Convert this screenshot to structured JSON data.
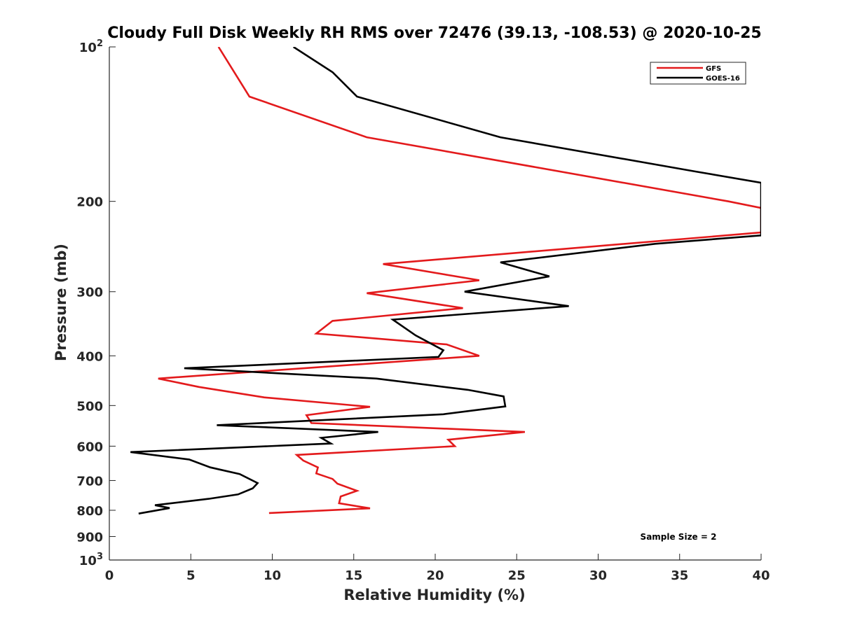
{
  "chart_data": {
    "type": "line",
    "title": "Cloudy Full Disk Weekly RH RMS over 72476 (39.13, -108.53) @ 2020-10-25",
    "xlabel": "Relative Humidity (%)",
    "ylabel": "Pressure (mb)",
    "xlim": [
      0,
      40
    ],
    "ylim": [
      100,
      1000
    ],
    "yscale": "log",
    "y_reversed": true,
    "grid": false,
    "legend_position": "top-right",
    "x_ticks": [
      "0",
      "5",
      "10",
      "15",
      "20",
      "25",
      "30",
      "35",
      "40"
    ],
    "y_ticks": [
      {
        "value": 100,
        "base": "10",
        "exp": "2"
      },
      {
        "value": 200,
        "label": "200"
      },
      {
        "value": 300,
        "label": "300"
      },
      {
        "value": 400,
        "label": "400"
      },
      {
        "value": 500,
        "label": "500"
      },
      {
        "value": 600,
        "label": "600"
      },
      {
        "value": 700,
        "label": "700"
      },
      {
        "value": 800,
        "label": "800"
      },
      {
        "value": 900,
        "label": "900"
      },
      {
        "value": 1000,
        "base": "10",
        "exp": "3"
      }
    ],
    "series": [
      {
        "name": "GFS",
        "color": "#e31a1c",
        "points": [
          [
            6.7,
            100
          ],
          [
            8.6,
            125
          ],
          [
            15.8,
            150
          ],
          [
            38,
            200
          ],
          [
            40,
            206
          ],
          [
            40,
            230
          ],
          [
            16.8,
            265
          ],
          [
            22.7,
            285
          ],
          [
            15.8,
            302
          ],
          [
            21.7,
            323
          ],
          [
            13.7,
            342
          ],
          [
            12.7,
            362
          ],
          [
            20.7,
            380
          ],
          [
            22.7,
            400
          ],
          [
            3.0,
            443
          ],
          [
            5.5,
            460
          ],
          [
            9.5,
            482
          ],
          [
            16.0,
            503
          ],
          [
            12.1,
            522
          ],
          [
            12.4,
            541
          ],
          [
            25.5,
            563
          ],
          [
            20.8,
            583
          ],
          [
            21.2,
            600
          ],
          [
            11.5,
            624
          ],
          [
            11.9,
            640
          ],
          [
            12.8,
            660
          ],
          [
            12.7,
            678
          ],
          [
            13.7,
            695
          ],
          [
            14.0,
            710
          ],
          [
            15.2,
            733
          ],
          [
            14.2,
            752
          ],
          [
            14.1,
            775
          ],
          [
            16.0,
            793
          ],
          [
            9.8,
            810
          ]
        ]
      },
      {
        "name": "GOES-16",
        "color": "#000000",
        "points": [
          [
            11.3,
            100
          ],
          [
            13.7,
            112
          ],
          [
            15.2,
            125
          ],
          [
            24.0,
            150
          ],
          [
            36.0,
            175
          ],
          [
            40,
            184
          ],
          [
            40,
            233
          ],
          [
            33.5,
            242
          ],
          [
            24.0,
            263
          ],
          [
            27.0,
            280
          ],
          [
            21.8,
            300
          ],
          [
            28.2,
            320
          ],
          [
            17.4,
            340
          ],
          [
            18.8,
            365
          ],
          [
            20.5,
            390
          ],
          [
            20.2,
            402
          ],
          [
            4.6,
            423
          ],
          [
            16.4,
            443
          ],
          [
            22.0,
            466
          ],
          [
            24.2,
            480
          ],
          [
            24.3,
            502
          ],
          [
            20.5,
            520
          ],
          [
            6.6,
            546
          ],
          [
            16.5,
            563
          ],
          [
            13.0,
            578
          ],
          [
            13.6,
            593
          ],
          [
            1.3,
            616
          ],
          [
            4.9,
            637
          ],
          [
            6.2,
            660
          ],
          [
            8.0,
            680
          ],
          [
            9.1,
            708
          ],
          [
            8.8,
            725
          ],
          [
            7.9,
            745
          ],
          [
            6.1,
            760
          ],
          [
            2.8,
            782
          ],
          [
            3.7,
            792
          ],
          [
            1.8,
            812
          ]
        ]
      }
    ],
    "annotations": [
      "Sample Size = 2"
    ]
  }
}
